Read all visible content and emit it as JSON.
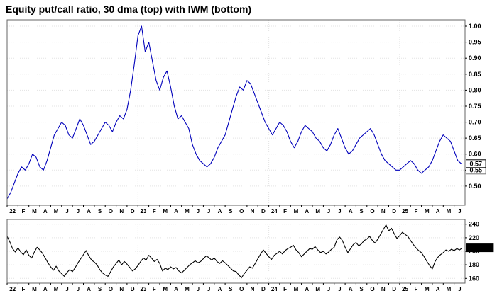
{
  "title": "Equity put/call ratio, 30 dma (top) with IWM (bottom)",
  "colors": {
    "putcall_line": "#0000bb",
    "iwm_line": "#000000",
    "plot_border": "#666666",
    "grid": "#e3e3e3",
    "label_box_fill": "#000000",
    "label_box_text": "#ffffff"
  },
  "x_axis": {
    "months_total": 42,
    "labels": [
      "22",
      "F",
      "M",
      "A",
      "M",
      "J",
      "J",
      "A",
      "S",
      "O",
      "N",
      "D",
      "23",
      "F",
      "M",
      "A",
      "M",
      "J",
      "J",
      "A",
      "S",
      "O",
      "N",
      "D",
      "24",
      "F",
      "M",
      "A",
      "M",
      "J",
      "J",
      "A",
      "S",
      "O",
      "N",
      "D",
      "25",
      "F",
      "M",
      "A",
      "M",
      "J"
    ],
    "year_positions": [
      0,
      12,
      24,
      36
    ]
  },
  "chart_data": [
    {
      "type": "line",
      "name": "equity-putcall-ratio-30dma",
      "ylim": [
        0.44,
        1.02
      ],
      "yticks": [
        {
          "value": 0.5,
          "label": "0.50"
        },
        {
          "value": 0.55,
          "label": "0.55"
        },
        {
          "value": 0.6,
          "label": "0.60"
        },
        {
          "value": 0.65,
          "label": "0.65"
        },
        {
          "value": 0.7,
          "label": "0.70"
        },
        {
          "value": 0.75,
          "label": "0.75"
        },
        {
          "value": 0.8,
          "label": "0.80"
        },
        {
          "value": 0.85,
          "label": "0.85"
        },
        {
          "value": 0.9,
          "label": "0.90"
        },
        {
          "value": 0.95,
          "label": "0.95"
        },
        {
          "value": 1.0,
          "label": "1.00"
        }
      ],
      "last_value_labels": [
        {
          "text": "0.55",
          "value": 0.55,
          "style": "boxed"
        },
        {
          "text": "0.57",
          "value": 0.57,
          "style": "boxed-bold"
        }
      ],
      "series": [
        {
          "name": "Equity put/call ratio 30 dma",
          "color": "#0000bb",
          "x_start": 0,
          "x_step": 0.3333,
          "values": [
            0.46,
            0.48,
            0.51,
            0.54,
            0.56,
            0.55,
            0.57,
            0.6,
            0.59,
            0.56,
            0.55,
            0.58,
            0.62,
            0.66,
            0.68,
            0.7,
            0.69,
            0.66,
            0.65,
            0.68,
            0.71,
            0.69,
            0.66,
            0.63,
            0.64,
            0.66,
            0.68,
            0.7,
            0.69,
            0.67,
            0.7,
            0.72,
            0.71,
            0.74,
            0.8,
            0.88,
            0.97,
            1.0,
            0.92,
            0.95,
            0.89,
            0.83,
            0.8,
            0.84,
            0.86,
            0.81,
            0.75,
            0.71,
            0.72,
            0.7,
            0.68,
            0.63,
            0.6,
            0.58,
            0.57,
            0.56,
            0.57,
            0.59,
            0.62,
            0.64,
            0.66,
            0.7,
            0.74,
            0.78,
            0.81,
            0.8,
            0.83,
            0.82,
            0.79,
            0.76,
            0.73,
            0.7,
            0.68,
            0.66,
            0.68,
            0.7,
            0.69,
            0.67,
            0.64,
            0.62,
            0.64,
            0.67,
            0.69,
            0.68,
            0.67,
            0.65,
            0.64,
            0.62,
            0.61,
            0.63,
            0.66,
            0.68,
            0.65,
            0.62,
            0.6,
            0.61,
            0.63,
            0.65,
            0.66,
            0.67,
            0.68,
            0.66,
            0.63,
            0.6,
            0.58,
            0.57,
            0.56,
            0.55,
            0.55,
            0.56,
            0.57,
            0.58,
            0.57,
            0.55,
            0.54,
            0.55,
            0.56,
            0.58,
            0.61,
            0.64,
            0.66,
            0.65,
            0.64,
            0.61,
            0.58,
            0.57
          ]
        }
      ]
    },
    {
      "type": "line",
      "name": "iwm-price",
      "ylim": [
        153,
        247
      ],
      "yticks": [
        {
          "value": 160,
          "label": "160"
        },
        {
          "value": 180,
          "label": "180"
        },
        {
          "value": 200,
          "label": "200"
        },
        {
          "value": 220,
          "label": "220"
        },
        {
          "value": 240,
          "label": "240"
        }
      ],
      "last_value_labels": [
        {
          "text": "205.07",
          "value": 205.07,
          "style": "filled"
        }
      ],
      "series": [
        {
          "name": "IWM",
          "color": "#000000",
          "x_start": 0,
          "x_step": 0.25,
          "values": [
            222,
            214,
            204,
            199,
            205,
            199,
            195,
            202,
            194,
            190,
            199,
            206,
            202,
            197,
            190,
            183,
            177,
            172,
            178,
            171,
            167,
            163,
            169,
            173,
            170,
            176,
            183,
            189,
            195,
            201,
            193,
            187,
            184,
            180,
            173,
            168,
            165,
            163,
            170,
            177,
            182,
            187,
            180,
            185,
            181,
            176,
            171,
            174,
            179,
            185,
            190,
            187,
            194,
            190,
            185,
            188,
            182,
            171,
            175,
            173,
            177,
            174,
            176,
            171,
            168,
            172,
            176,
            180,
            183,
            186,
            183,
            185,
            189,
            193,
            191,
            187,
            190,
            185,
            182,
            186,
            183,
            179,
            175,
            171,
            170,
            165,
            161,
            167,
            172,
            177,
            175,
            182,
            189,
            196,
            202,
            197,
            192,
            188,
            194,
            197,
            200,
            196,
            201,
            204,
            206,
            209,
            202,
            198,
            192,
            196,
            200,
            204,
            203,
            207,
            202,
            198,
            200,
            196,
            199,
            203,
            206,
            217,
            221,
            216,
            206,
            198,
            204,
            210,
            213,
            208,
            211,
            216,
            218,
            222,
            216,
            212,
            218,
            225,
            232,
            239,
            230,
            234,
            226,
            219,
            223,
            228,
            225,
            222,
            216,
            210,
            205,
            201,
            198,
            192,
            185,
            179,
            174,
            185,
            191,
            195,
            198,
            202,
            200,
            203,
            201,
            204,
            202,
            205.07
          ]
        }
      ]
    }
  ]
}
